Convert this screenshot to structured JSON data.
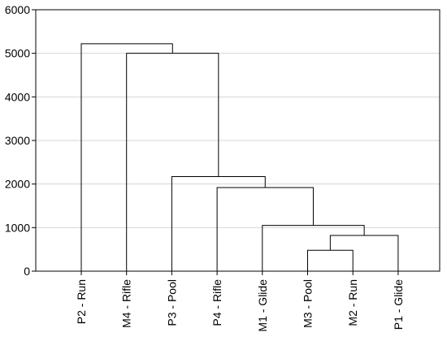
{
  "chart_data": {
    "type": "dendrogram",
    "title": "",
    "xlabel": "",
    "ylabel": "",
    "ylim": [
      0,
      6000
    ],
    "yticks": [
      0,
      1000,
      2000,
      3000,
      4000,
      5000,
      6000
    ],
    "grid": {
      "horizontal": true,
      "vertical": false
    },
    "leaves": [
      "P2 - Run",
      "M4 - Rifle",
      "P3 - Pool",
      "P4 - Rifle",
      "M1 - Glide",
      "M3 - Pool",
      "M2 - Run",
      "P1 - Glide"
    ],
    "merges": [
      {
        "left": 5,
        "right": 6,
        "height": 480
      },
      {
        "left": "m0",
        "right": 7,
        "height": 820
      },
      {
        "left": 4,
        "right": "m1",
        "height": 1050
      },
      {
        "left": 3,
        "right": "m2",
        "height": 1920
      },
      {
        "left": 2,
        "right": "m3",
        "height": 2170
      },
      {
        "left": 1,
        "right": "m4",
        "height": 5000
      },
      {
        "left": 0,
        "right": "m5",
        "height": 5220
      }
    ]
  }
}
